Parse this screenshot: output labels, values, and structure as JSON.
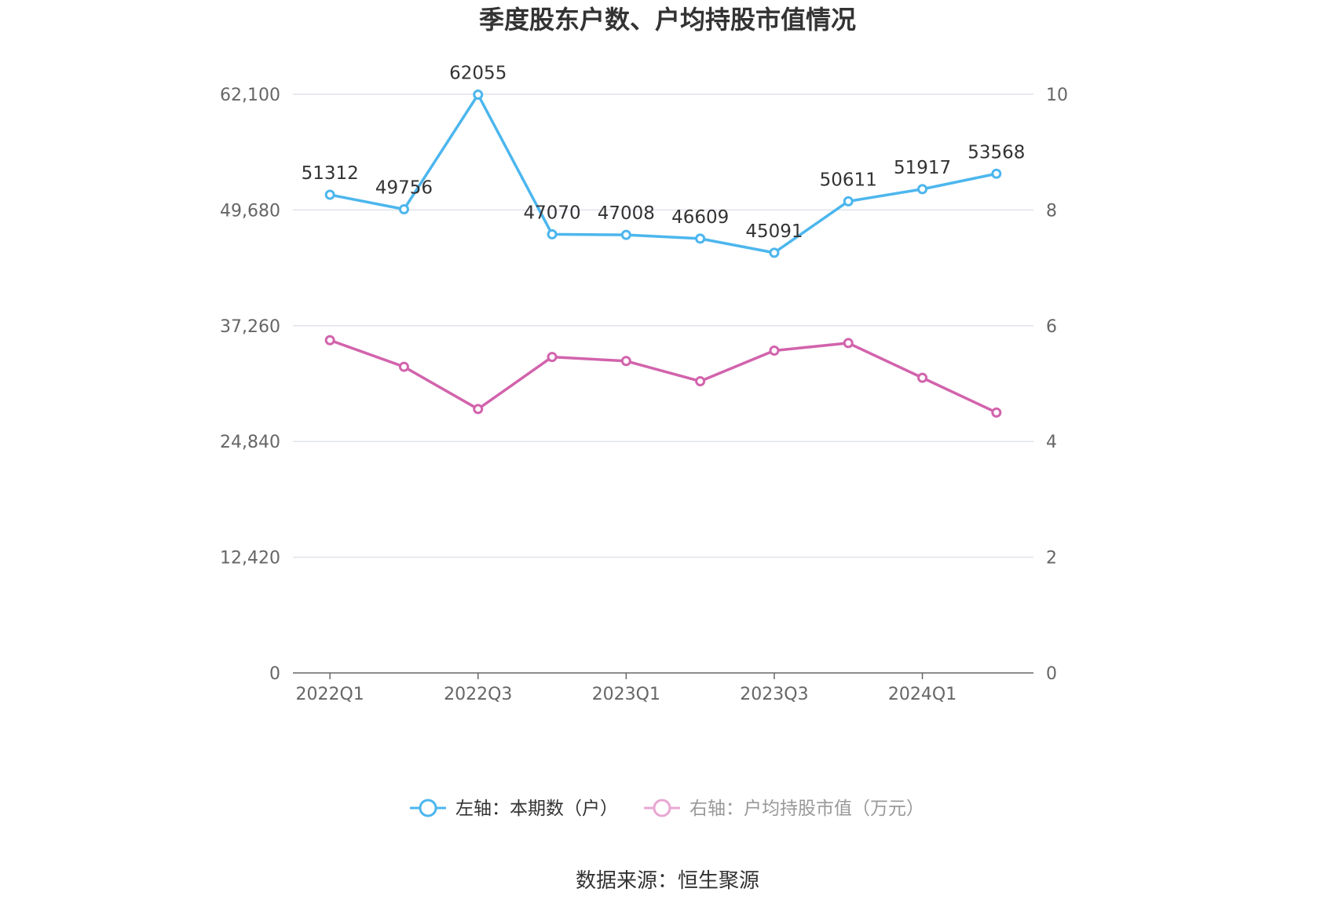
{
  "colors": {
    "left_series": "#4cb6ee",
    "right_series": "#d263ac",
    "right_legend": "#e8a7d3",
    "grid": "#dfe3ea",
    "axis": "#666666",
    "text": "#333333"
  },
  "chart_data": {
    "type": "line",
    "title": "季度股东户数、户均持股市值情况",
    "categories": [
      "2022Q1",
      "2022Q2",
      "2022Q3",
      "2022Q4",
      "2023Q1",
      "2023Q2",
      "2023Q3",
      "2023Q4",
      "2024Q1",
      "2024Q2"
    ],
    "x_tick_labels": [
      "2022Q1",
      "",
      "2022Q3",
      "",
      "2023Q1",
      "",
      "2023Q3",
      "",
      "2024Q1",
      ""
    ],
    "left_axis": {
      "ticks": [
        0,
        12420,
        24840,
        37260,
        49680,
        62100
      ],
      "tick_labels": [
        "0",
        "12,420",
        "24,840",
        "37,260",
        "49,680",
        "62,100"
      ],
      "ylim": [
        0,
        62100
      ]
    },
    "right_axis": {
      "ticks": [
        0,
        2,
        4,
        6,
        8,
        10
      ],
      "tick_labels": [
        "0",
        "2",
        "4",
        "6",
        "8",
        "10"
      ],
      "ylim": [
        0,
        10
      ]
    },
    "series": [
      {
        "name": "左轴：本期数（户）",
        "axis": "left",
        "values": [
          51312,
          49756,
          62055,
          47070,
          47008,
          46609,
          45091,
          50611,
          51917,
          53568
        ],
        "labels": [
          "51312",
          "49756",
          "62055",
          "47070",
          "47008",
          "46609",
          "45091",
          "50611",
          "51917",
          "53568"
        ]
      },
      {
        "name": "右轴：户均持股市值（万元）",
        "axis": "right",
        "values": [
          5.75,
          5.29,
          4.56,
          5.46,
          5.39,
          5.04,
          5.57,
          5.7,
          5.1,
          4.5
        ]
      }
    ],
    "grid": true,
    "legend_position": "bottom"
  },
  "source": "数据来源：恒生聚源"
}
